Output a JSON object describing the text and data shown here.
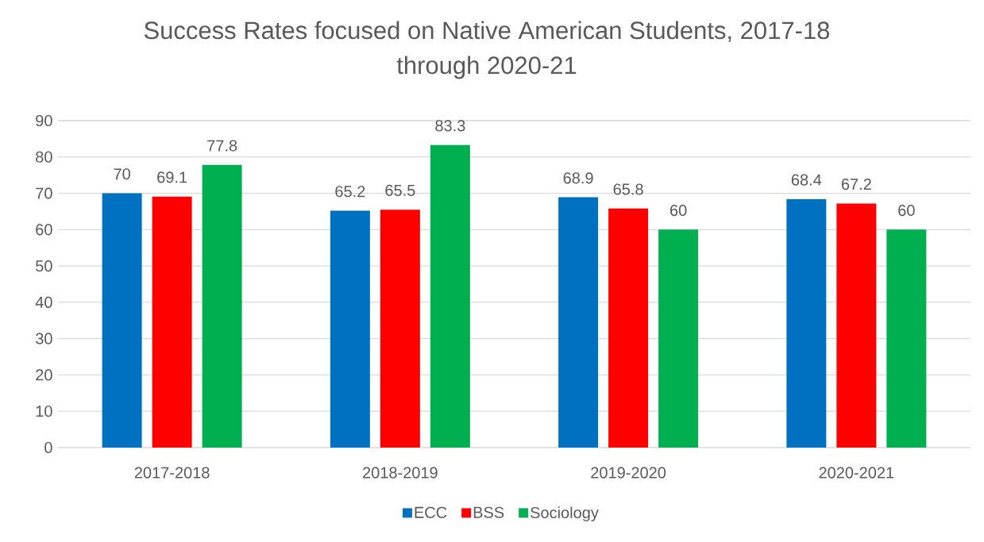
{
  "chart_data": {
    "type": "bar",
    "title": "Success Rates focused on Native American Students, 2017-18 through 2020-21",
    "categories": [
      "2017-2018",
      "2018-2019",
      "2019-2020",
      "2020-2021"
    ],
    "series": [
      {
        "name": "ECC",
        "color": "#0070c0",
        "values": [
          70,
          65.2,
          68.9,
          68.4
        ]
      },
      {
        "name": "BSS",
        "color": "#ff0000",
        "values": [
          69.1,
          65.5,
          65.8,
          67.2
        ]
      },
      {
        "name": "Sociology",
        "color": "#00b050",
        "values": [
          77.8,
          83.3,
          60,
          60
        ]
      }
    ],
    "ylim": [
      0,
      90
    ],
    "yticks": [
      0,
      10,
      20,
      30,
      40,
      50,
      60,
      70,
      80,
      90
    ],
    "grid": "y",
    "legend": "bottom",
    "data_labels": true
  }
}
